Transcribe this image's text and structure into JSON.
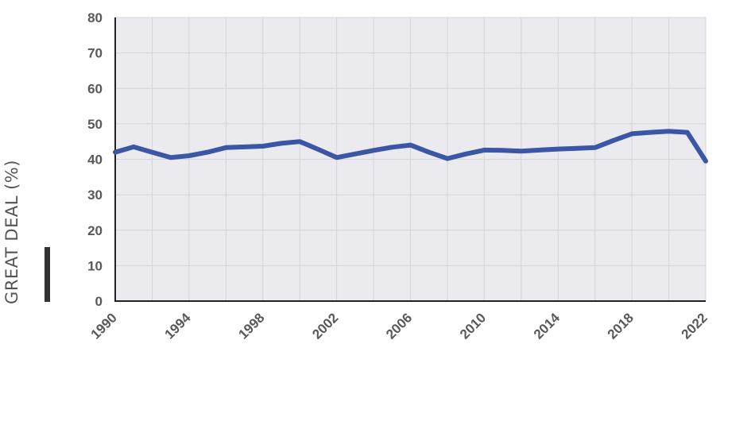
{
  "chart_data": {
    "type": "line",
    "title": "",
    "xlabel": "",
    "ylabel": "GREAT DEAL (%)",
    "xlim": [
      1990,
      2022
    ],
    "ylim": [
      0,
      80
    ],
    "y_ticks": [
      0,
      10,
      20,
      30,
      40,
      50,
      60,
      70,
      80
    ],
    "x_ticks": [
      1990,
      1994,
      1998,
      2002,
      2006,
      2010,
      2014,
      2018,
      2022
    ],
    "grid": true,
    "legend": "none",
    "colors": {
      "line": "#3a56a4",
      "plot_bg": "#ebebef",
      "grid": "#d4d4d8",
      "axis": "#222222",
      "ylabel_bar": "#333333"
    },
    "series": [
      {
        "x": [
          1990,
          1991,
          1992,
          1993,
          1994,
          1995,
          1996,
          1997,
          1998,
          1999,
          2000,
          2001,
          2002,
          2003,
          2004,
          2005,
          2006,
          2007,
          2008,
          2009,
          2010,
          2011,
          2012,
          2013,
          2014,
          2015,
          2016,
          2017,
          2018,
          2019,
          2020,
          2021,
          2022
        ],
        "y": [
          42,
          43.5,
          42,
          40.5,
          41,
          42,
          43.3,
          43.5,
          43.7,
          44.5,
          45,
          42.8,
          40.5,
          41.5,
          42.5,
          43.4,
          44,
          42,
          40.2,
          41.5,
          42.6,
          42.5,
          42.3,
          42.6,
          42.9,
          43.1,
          43.3,
          45.3,
          47.2,
          47.6,
          47.9,
          47.6,
          39.5
        ]
      }
    ]
  }
}
